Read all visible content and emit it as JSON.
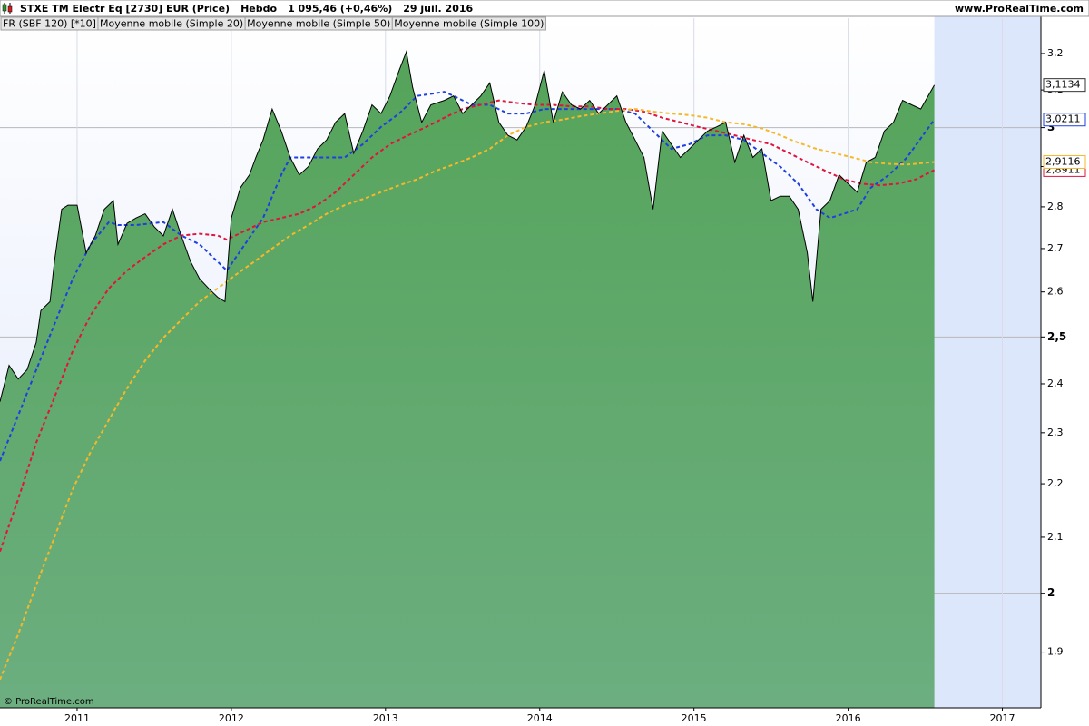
{
  "chart_data": {
    "type": "line",
    "title": "STXE TM Electr Eq [2730] EUR (Price)",
    "period": "Hebdo",
    "quote": "1 095,46 (+0,46%)",
    "date": "29 juil. 2016",
    "site": "www.ProRealTime.com",
    "watermark": "© ProRealTime.com",
    "log": true,
    "grid": true,
    "legend": "top-left",
    "xlim": [
      2010.5,
      2017.25
    ],
    "xticks": [
      2011,
      2012,
      2013,
      2014,
      2015,
      2016,
      2017
    ],
    "ylim": [
      1.81,
      3.3
    ],
    "yticks": [
      {
        "value": 3.2,
        "label": "3,2"
      },
      {
        "value": 3.1,
        "label": "3,1"
      },
      3,
      {
        "value": 2.9,
        "label": "2,9"
      },
      {
        "value": 2.8,
        "label": "2,8"
      },
      {
        "value": 2.7,
        "label": "2,7"
      },
      {
        "value": 2.6,
        "label": "2,6"
      },
      {
        "value": 2.5,
        "label": "2,5"
      },
      {
        "value": 2.4,
        "label": "2,4"
      },
      {
        "value": 2.3,
        "label": "2,3"
      },
      {
        "value": 2.2,
        "label": "2,2"
      },
      {
        "value": 2.1,
        "label": "2,1"
      },
      2,
      {
        "value": 1.9,
        "label": "1,9"
      }
    ],
    "major_yticks": [
      3,
      2.5,
      2
    ],
    "series": [
      {
        "name": "FR (SBF 120) [*10]",
        "color": "#000000",
        "fill": "#5ea862",
        "style": "area",
        "x": [
          2010.5,
          2010.559,
          2010.618,
          2010.676,
          2010.735,
          2010.765,
          2010.824,
          2010.853,
          2010.9,
          2010.941,
          2011,
          2011.059,
          2011.118,
          2011.176,
          2011.235,
          2011.265,
          2011.324,
          2011.382,
          2011.441,
          2011.5,
          2011.559,
          2011.618,
          2011.676,
          2011.735,
          2011.794,
          2011.853,
          2011.912,
          2011.959,
          2012,
          2012.059,
          2012.118,
          2012.159,
          2012.206,
          2012.265,
          2012.324,
          2012.382,
          2012.441,
          2012.5,
          2012.559,
          2012.618,
          2012.676,
          2012.735,
          2012.794,
          2012.853,
          2012.912,
          2012.971,
          2013.029,
          2013.088,
          2013.135,
          2013.176,
          2013.235,
          2013.294,
          2013.382,
          2013.441,
          2013.5,
          2013.559,
          2013.618,
          2013.676,
          2013.735,
          2013.794,
          2013.853,
          2013.912,
          2013.971,
          2014.029,
          2014.088,
          2014.147,
          2014.206,
          2014.265,
          2014.324,
          2014.382,
          2014.441,
          2014.5,
          2014.559,
          2014.618,
          2014.676,
          2014.735,
          2014.794,
          2014.853,
          2014.912,
          2014.971,
          2015.029,
          2015.088,
          2015.147,
          2015.206,
          2015.265,
          2015.324,
          2015.382,
          2015.441,
          2015.5,
          2015.559,
          2015.618,
          2015.676,
          2015.735,
          2015.771,
          2015.824,
          2015.882,
          2015.941,
          2016,
          2016.059,
          2016.118,
          2016.176,
          2016.235,
          2016.294,
          2016.353,
          2016.412,
          2016.471,
          2016.559
        ],
        "values": [
          2.363,
          2.439,
          2.41,
          2.43,
          2.488,
          2.558,
          2.578,
          2.67,
          2.794,
          2.804,
          2.804,
          2.69,
          2.73,
          2.794,
          2.815,
          2.71,
          2.76,
          2.773,
          2.783,
          2.752,
          2.73,
          2.794,
          2.73,
          2.67,
          2.63,
          2.608,
          2.588,
          2.578,
          2.773,
          2.847,
          2.879,
          2.923,
          2.968,
          3.049,
          2.991,
          2.923,
          2.879,
          2.9,
          2.945,
          2.968,
          3.014,
          3.037,
          2.934,
          2.991,
          3.06,
          3.037,
          3.084,
          3.153,
          3.205,
          3.107,
          3.014,
          3.06,
          3.072,
          3.084,
          3.037,
          3.06,
          3.084,
          3.119,
          3.014,
          2.98,
          2.968,
          3.002,
          3.06,
          3.153,
          3.014,
          3.095,
          3.06,
          3.049,
          3.072,
          3.037,
          3.06,
          3.084,
          3.014,
          2.968,
          2.923,
          2.794,
          2.991,
          2.957,
          2.923,
          2.945,
          2.968,
          2.991,
          3.002,
          3.014,
          2.911,
          2.98,
          2.923,
          2.945,
          2.815,
          2.826,
          2.826,
          2.794,
          2.69,
          2.578,
          2.794,
          2.815,
          2.879,
          2.857,
          2.836,
          2.911,
          2.923,
          2.991,
          3.014,
          3.072,
          3.06,
          3.049,
          3.1134
        ],
        "end_label": {
          "value": 3.1134,
          "label": "3,1134"
        }
      },
      {
        "name": "Moyenne mobile (Simple 20)",
        "color": "#1f3fe0",
        "style": "dash",
        "x": [
          2010.5,
          2010.618,
          2010.735,
          2010.853,
          2010.971,
          2011.088,
          2011.206,
          2011.265,
          2011.382,
          2011.559,
          2011.676,
          2011.794,
          2011.912,
          2011.971,
          2012.088,
          2012.206,
          2012.324,
          2012.382,
          2012.5,
          2012.618,
          2012.735,
          2012.853,
          2012.971,
          2013.088,
          2013.206,
          2013.382,
          2013.441,
          2013.559,
          2013.676,
          2013.794,
          2013.912,
          2014.029,
          2014.147,
          2014.265,
          2014.382,
          2014.5,
          2014.618,
          2014.735,
          2014.853,
          2014.971,
          2015.088,
          2015.206,
          2015.324,
          2015.441,
          2015.559,
          2015.676,
          2015.794,
          2015.882,
          2015.971,
          2016.059,
          2016.147,
          2016.265,
          2016.382,
          2016.559
        ],
        "values": [
          2.244,
          2.335,
          2.429,
          2.528,
          2.629,
          2.71,
          2.763,
          2.756,
          2.756,
          2.763,
          2.731,
          2.71,
          2.669,
          2.649,
          2.71,
          2.773,
          2.879,
          2.923,
          2.923,
          2.923,
          2.923,
          2.957,
          3.002,
          3.037,
          3.084,
          3.095,
          3.084,
          3.06,
          3.06,
          3.037,
          3.037,
          3.049,
          3.049,
          3.049,
          3.049,
          3.049,
          3.037,
          2.991,
          2.945,
          2.957,
          2.98,
          2.98,
          2.968,
          2.934,
          2.9,
          2.857,
          2.794,
          2.773,
          2.783,
          2.794,
          2.847,
          2.879,
          2.923,
          3.0211
        ],
        "end_label": {
          "value": 3.0211,
          "label": "3,0211"
        }
      },
      {
        "name": "Moyenne mobile (Simple 50)",
        "color": "#e0143c",
        "style": "dash",
        "x": [
          2010.5,
          2010.618,
          2010.735,
          2010.853,
          2010.971,
          2011.088,
          2011.206,
          2011.324,
          2011.441,
          2011.559,
          2011.676,
          2011.794,
          2011.912,
          2011.971,
          2012.088,
          2012.206,
          2012.324,
          2012.441,
          2012.559,
          2012.676,
          2012.794,
          2012.912,
          2013.029,
          2013.147,
          2013.265,
          2013.382,
          2013.5,
          2013.618,
          2013.735,
          2013.853,
          2013.971,
          2014.088,
          2014.206,
          2014.324,
          2014.441,
          2014.559,
          2014.676,
          2014.794,
          2014.912,
          2015.029,
          2015.147,
          2015.265,
          2015.382,
          2015.5,
          2015.618,
          2015.735,
          2015.853,
          2015.971,
          2016.088,
          2016.206,
          2016.324,
          2016.441,
          2016.559
        ],
        "values": [
          2.074,
          2.171,
          2.28,
          2.372,
          2.469,
          2.548,
          2.608,
          2.649,
          2.68,
          2.71,
          2.731,
          2.735,
          2.731,
          2.721,
          2.742,
          2.763,
          2.773,
          2.783,
          2.804,
          2.836,
          2.879,
          2.923,
          2.957,
          2.98,
          3.002,
          3.026,
          3.049,
          3.06,
          3.072,
          3.065,
          3.06,
          3.06,
          3.056,
          3.056,
          3.049,
          3.049,
          3.042,
          3.026,
          3.014,
          3.002,
          2.991,
          2.98,
          2.968,
          2.957,
          2.934,
          2.911,
          2.889,
          2.868,
          2.857,
          2.853,
          2.857,
          2.868,
          2.8911
        ],
        "end_label": {
          "value": 2.8911,
          "label": "2,8911"
        }
      },
      {
        "name": "Moyenne mobile (Simple 100)",
        "color": "#f5b82a",
        "style": "dash",
        "x": [
          2010.5,
          2010.618,
          2010.735,
          2010.853,
          2010.971,
          2011.088,
          2011.206,
          2011.324,
          2011.441,
          2011.559,
          2011.676,
          2011.794,
          2011.912,
          2012.029,
          2012.147,
          2012.265,
          2012.382,
          2012.5,
          2012.618,
          2012.735,
          2012.853,
          2012.971,
          2013.088,
          2013.206,
          2013.324,
          2013.441,
          2013.559,
          2013.676,
          2013.794,
          2013.912,
          2014.029,
          2014.147,
          2014.265,
          2014.382,
          2014.5,
          2014.618,
          2014.735,
          2014.853,
          2014.971,
          2015.088,
          2015.206,
          2015.324,
          2015.441,
          2015.559,
          2015.676,
          2015.794,
          2015.912,
          2016.029,
          2016.147,
          2016.265,
          2016.382,
          2016.559
        ],
        "values": [
          1.855,
          1.93,
          2.014,
          2.1,
          2.189,
          2.262,
          2.326,
          2.391,
          2.449,
          2.498,
          2.538,
          2.578,
          2.608,
          2.639,
          2.669,
          2.7,
          2.731,
          2.756,
          2.783,
          2.804,
          2.819,
          2.836,
          2.853,
          2.868,
          2.889,
          2.905,
          2.923,
          2.945,
          2.98,
          3.002,
          3.014,
          3.021,
          3.03,
          3.037,
          3.044,
          3.049,
          3.042,
          3.037,
          3.033,
          3.026,
          3.014,
          3.009,
          2.998,
          2.98,
          2.961,
          2.945,
          2.934,
          2.923,
          2.911,
          2.907,
          2.905,
          2.9116
        ],
        "end_label": {
          "value": 2.9116,
          "label": "2,9116"
        }
      }
    ]
  }
}
